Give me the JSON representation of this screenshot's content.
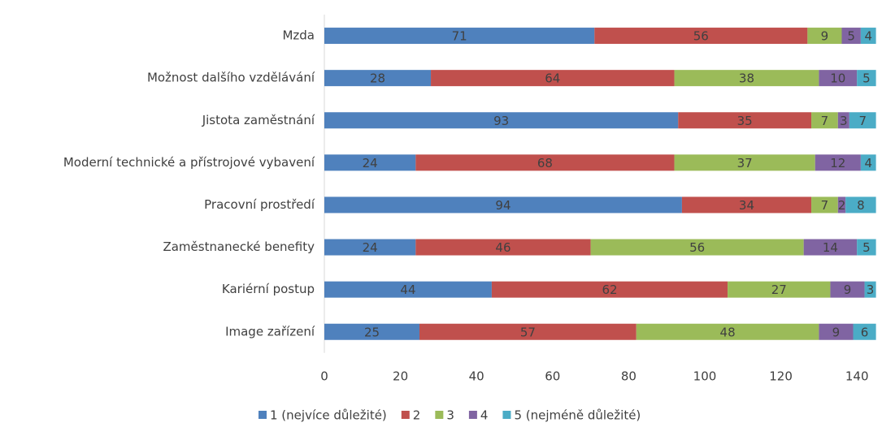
{
  "chart_data": {
    "type": "stacked-barh",
    "categories": [
      "Mzda",
      "Možnost dalšího vzdělávání",
      "Jistota zaměstnání",
      "Moderní technické a přístrojové vybavení",
      "Pracovní prostředí",
      "Zaměstnanecké benefity",
      "Kariérní postup",
      "Image zařízení"
    ],
    "series": [
      {
        "name": "1 (nejvíce důležité)",
        "color": "#4f81bd",
        "values": [
          71,
          28,
          93,
          24,
          94,
          24,
          44,
          25
        ]
      },
      {
        "name": "2",
        "color": "#c0504d",
        "values": [
          56,
          64,
          35,
          68,
          34,
          46,
          62,
          57
        ]
      },
      {
        "name": "3",
        "color": "#9bbb59",
        "values": [
          9,
          38,
          7,
          37,
          7,
          56,
          27,
          48
        ]
      },
      {
        "name": "4",
        "color": "#8064a2",
        "values": [
          5,
          10,
          3,
          12,
          2,
          14,
          9,
          9
        ]
      },
      {
        "name": "5 (nejméně důležité)",
        "color": "#4bacc6",
        "values": [
          4,
          5,
          7,
          4,
          8,
          5,
          3,
          6
        ]
      }
    ],
    "xlim": [
      0,
      145
    ],
    "xticks": [
      0,
      20,
      40,
      60,
      80,
      100,
      120,
      140
    ],
    "legend": "bottom"
  }
}
